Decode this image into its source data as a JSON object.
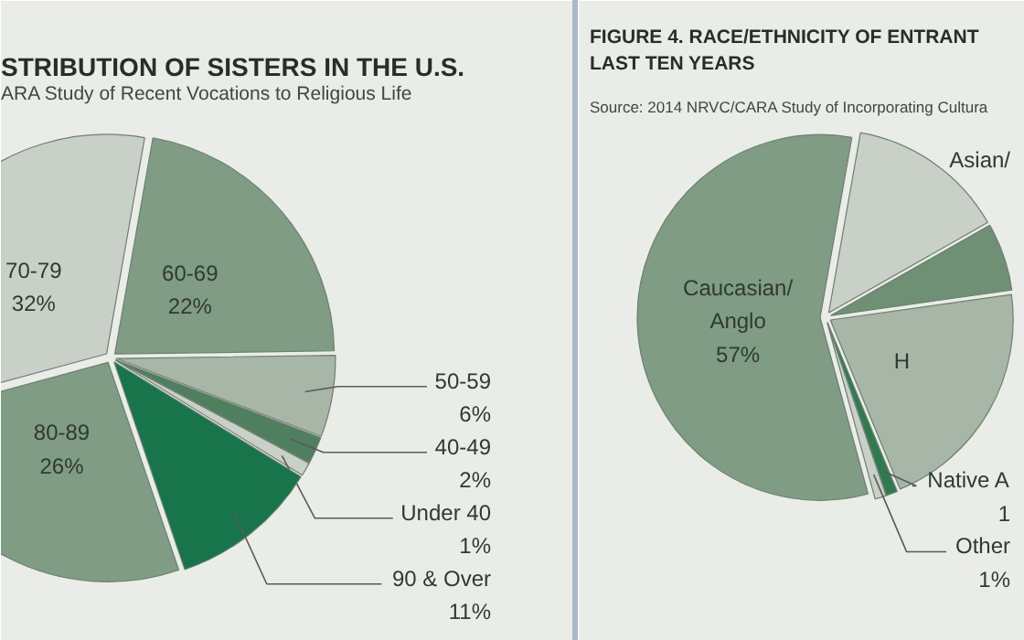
{
  "chart_data": [
    {
      "type": "pie",
      "title": "STRIBUTION OF SISTERS IN THE U.S.",
      "subtitle": "ARA Study of Recent Vocations to Religious Life",
      "categories": [
        "60-69",
        "50-59",
        "40-49",
        "Under 40",
        "90 & Over",
        "80-89",
        "70-79"
      ],
      "values": [
        22,
        6,
        2,
        1,
        11,
        26,
        32
      ],
      "value_labels": [
        "22%",
        "6%",
        "2%",
        "1%",
        "11%",
        "26%",
        "32%"
      ],
      "colors": [
        "#809c84",
        "#a7b6a6",
        "#4f7f5e",
        "#c9d0c8",
        "#17744b",
        "#809c84",
        "#c9d0c8"
      ]
    },
    {
      "type": "pie",
      "title": "FIGURE 4. RACE/ETHNICITY OF ENTRANT\nLAST TEN YEARS",
      "subtitle": "Source: 2014 NRVC/CARA Study of Incorporating Cultura",
      "categories": [
        "Asian/",
        null,
        "H",
        "Native A",
        "Other",
        "Caucasian/\nAnglo"
      ],
      "values": [
        14,
        6,
        21,
        1,
        1,
        57
      ],
      "value_labels": [
        null,
        null,
        null,
        "1",
        "1%",
        "57%"
      ],
      "colors": [
        "#c9d0c8",
        "#6f9075",
        "#a7b6a6",
        "#2f7b50",
        "#c9d0c8",
        "#809c84"
      ]
    }
  ]
}
